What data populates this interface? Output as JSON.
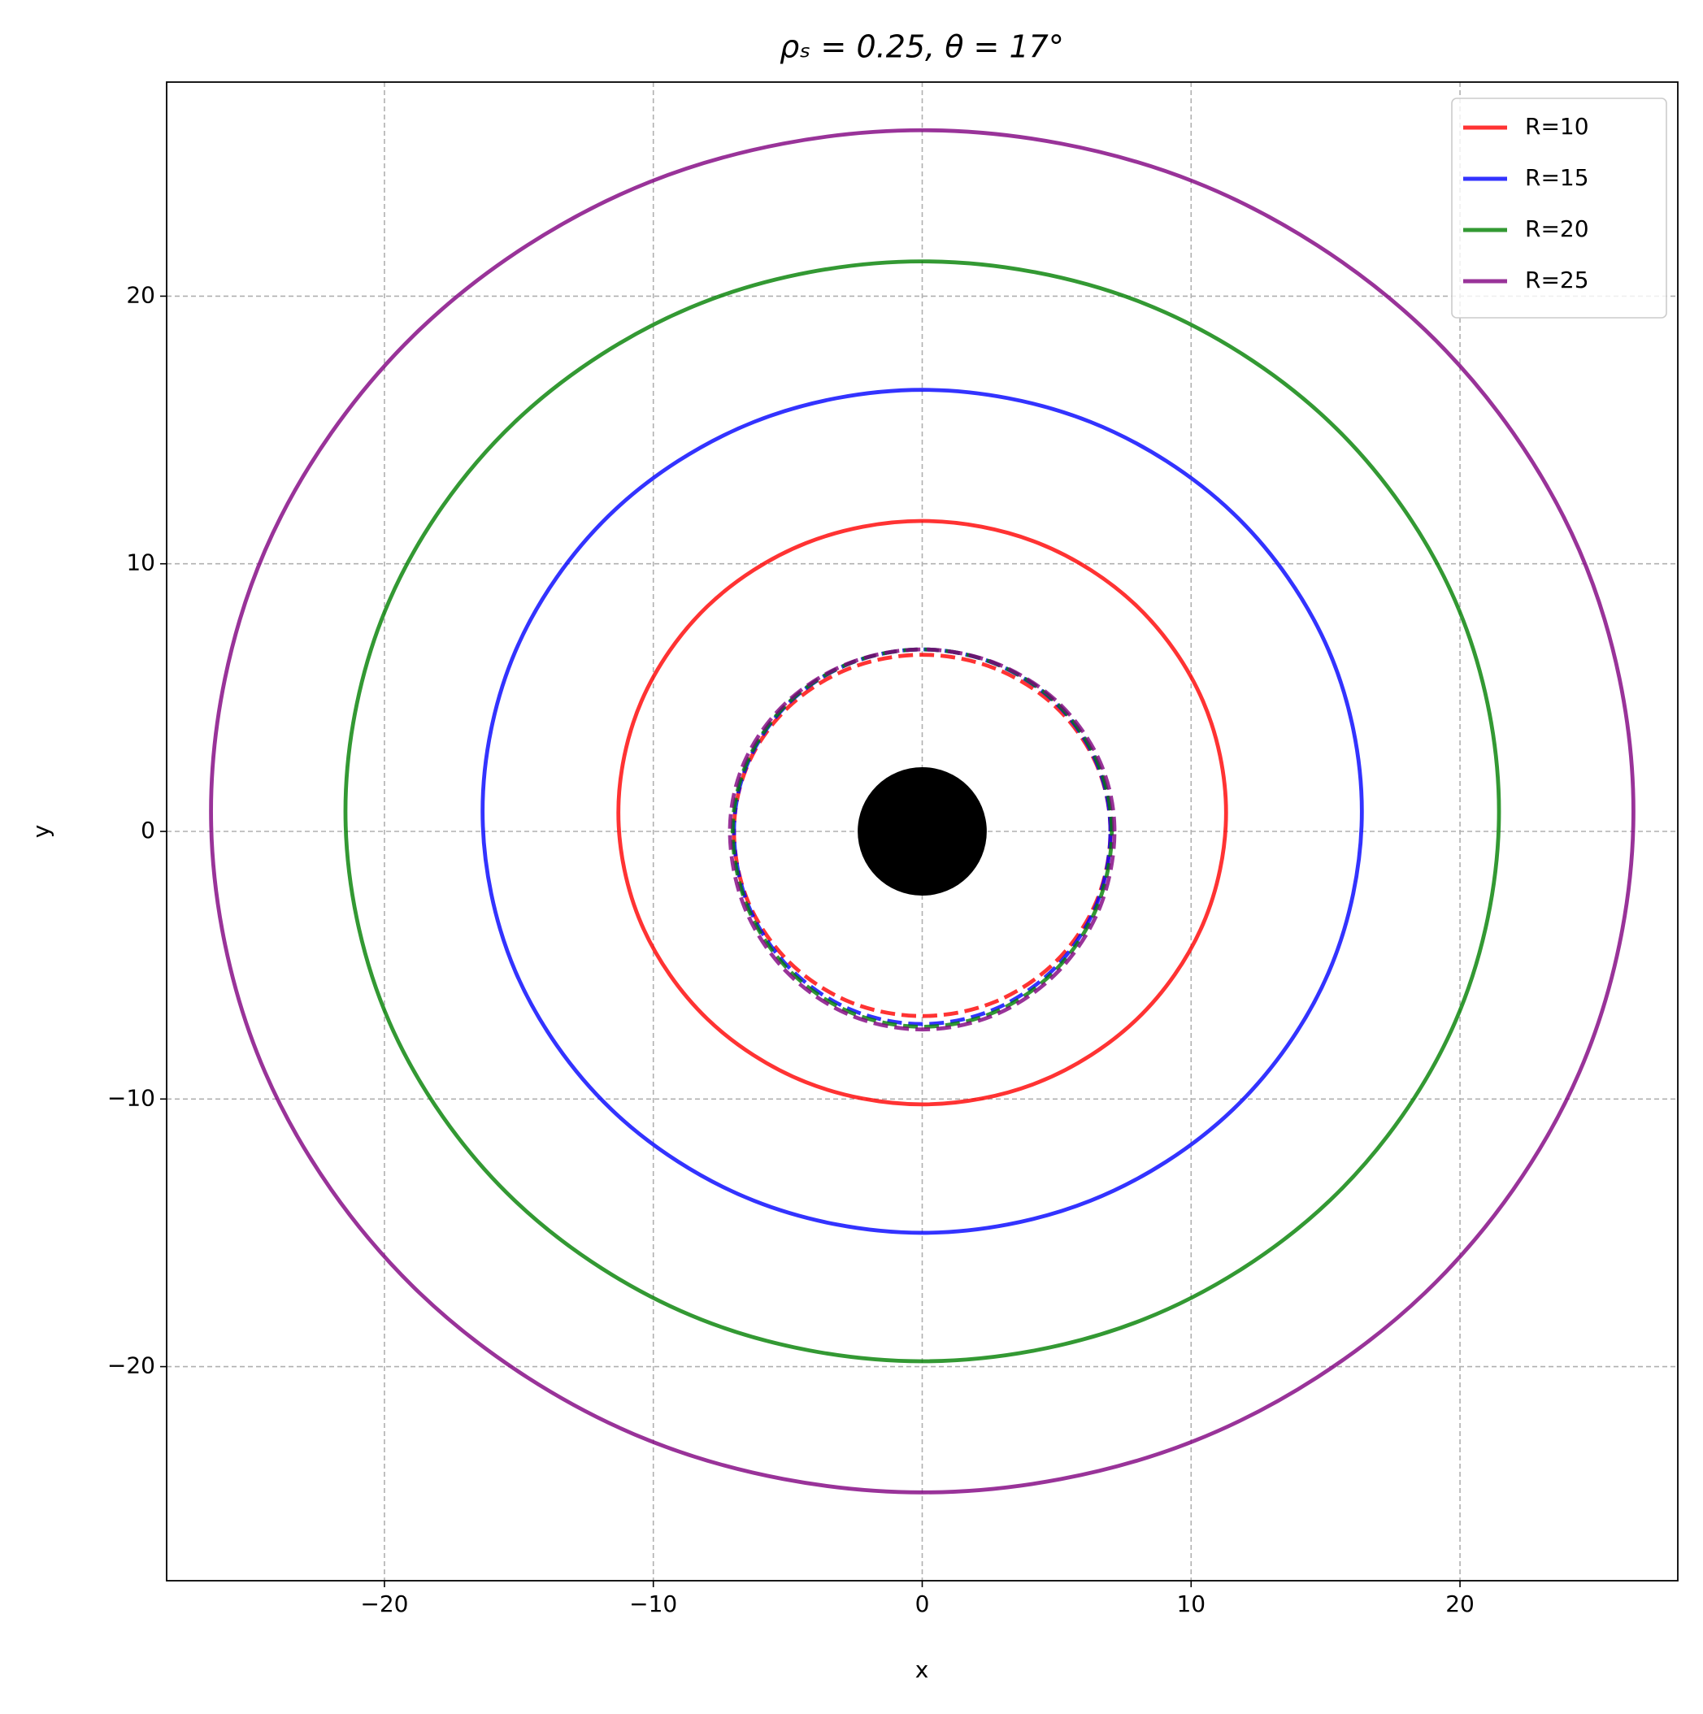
{
  "chart_data": {
    "type": "closed-curves",
    "title": "ρₛ = 0.25,  θ = 17°",
    "xlabel": "x",
    "ylabel": "y",
    "xlim": [
      -28.1,
      28.1
    ],
    "ylim": [
      -28,
      28
    ],
    "xticks": [
      {
        "value": -20,
        "label": "−20"
      },
      {
        "value": -10,
        "label": "−10"
      },
      0,
      10,
      20
    ],
    "yticks": [
      {
        "value": -20,
        "label": "−20"
      },
      {
        "value": -10,
        "label": "−10"
      },
      0,
      10,
      20
    ],
    "grid": true,
    "legend": "upper right",
    "disk": {
      "x": 0,
      "y": 0,
      "r": 2.4,
      "color": "#000000"
    },
    "series": [
      {
        "name": "R=10",
        "color": "#ff0000",
        "x": [
          11.3,
          10.44,
          7.99,
          4.33,
          0,
          -4.33,
          -7.99,
          -10.44,
          -11.3,
          -10.44,
          -7.99,
          -4.33,
          0,
          4.33,
          7.99,
          10.44
        ],
        "y": [
          0.7,
          4.87,
          8.41,
          10.77,
          11.6,
          10.77,
          8.41,
          4.87,
          0.7,
          -3.47,
          -7.01,
          -9.37,
          -10.2,
          -9.37,
          -7.01,
          -3.47
        ],
        "inner": {
          "x": [
            7,
            6.47,
            4.95,
            2.68,
            0,
            -2.68,
            -4.95,
            -6.47,
            -7,
            -6.47,
            -4.95,
            -2.68,
            0,
            2.68,
            4.95,
            6.47
          ],
          "y": [
            0,
            2.53,
            4.67,
            6.1,
            6.6,
            6.1,
            4.67,
            2.53,
            0,
            -2.64,
            -4.88,
            -6.38,
            -6.9,
            -6.38,
            -4.88,
            -2.64
          ]
        }
      },
      {
        "name": "R=15",
        "color": "#0000ff",
        "x": [
          16.35,
          15.11,
          11.56,
          6.26,
          0,
          -6.26,
          -11.56,
          -15.11,
          -16.35,
          -15.11,
          -11.56,
          -6.26,
          0,
          6.26,
          11.56,
          15.11
        ],
        "y": [
          0.75,
          6.78,
          11.89,
          15.3,
          16.5,
          15.3,
          11.89,
          6.78,
          0.75,
          -5.28,
          -10.39,
          -13.8,
          -15,
          -13.8,
          -10.39,
          -5.28
        ],
        "inner": {
          "x": [
            7,
            6.47,
            4.95,
            2.68,
            0,
            -2.68,
            -4.95,
            -6.47,
            -7,
            -6.47,
            -4.95,
            -2.68,
            0,
            2.68,
            4.95,
            6.47
          ],
          "y": [
            0,
            2.6,
            4.81,
            6.28,
            6.8,
            6.28,
            4.81,
            2.6,
            0,
            -2.76,
            -5.09,
            -6.65,
            -7.2,
            -6.65,
            -5.09,
            -2.76
          ]
        }
      },
      {
        "name": "R=20",
        "color": "#008000",
        "x": [
          21.45,
          19.82,
          15.17,
          8.22,
          0,
          -8.22,
          -15.17,
          -19.82,
          -21.45,
          -19.82,
          -15.17,
          -8.22,
          0,
          8.22,
          15.17,
          19.82
        ],
        "y": [
          0.75,
          8.62,
          15.28,
          19.74,
          21.3,
          19.74,
          15.28,
          8.62,
          0.75,
          -7.12,
          -13.78,
          -18.24,
          -19.8,
          -18.24,
          -13.78,
          -7.12
        ],
        "inner": {
          "x": [
            7.05,
            6.51,
            4.98,
            2.7,
            0,
            -2.7,
            -4.98,
            -6.51,
            -7.05,
            -6.51,
            -4.98,
            -2.7,
            0,
            2.7,
            4.98,
            6.51
          ],
          "y": [
            0,
            2.6,
            4.81,
            6.28,
            6.8,
            6.28,
            4.81,
            2.6,
            0,
            -2.8,
            -5.16,
            -6.75,
            -7.3,
            -6.75,
            -5.16,
            -2.8
          ]
        }
      },
      {
        "name": "R=25",
        "color": "#800080",
        "x": [
          26.45,
          24.44,
          18.7,
          10.13,
          0,
          -10.13,
          -18.7,
          -24.44,
          -26.45,
          -24.44,
          -18.7,
          -10.13,
          0,
          10.13,
          18.7,
          24.44
        ],
        "y": [
          0.75,
          10.5,
          18.74,
          24.27,
          26.2,
          24.27,
          18.74,
          10.5,
          0.75,
          -9,
          -17.24,
          -22.77,
          -24.7,
          -22.77,
          -17.24,
          -9
        ],
        "inner": {
          "x": [
            7.15,
            6.61,
            5.06,
            2.74,
            0,
            -2.74,
            -5.06,
            -6.61,
            -7.15,
            -6.61,
            -5.06,
            -2.74,
            0,
            2.74,
            5.06,
            6.61
          ],
          "y": [
            0,
            2.6,
            4.81,
            6.28,
            6.8,
            6.28,
            4.81,
            2.6,
            0,
            -2.83,
            -5.23,
            -6.84,
            -7.4,
            -6.84,
            -5.23,
            -2.83
          ]
        }
      }
    ]
  }
}
